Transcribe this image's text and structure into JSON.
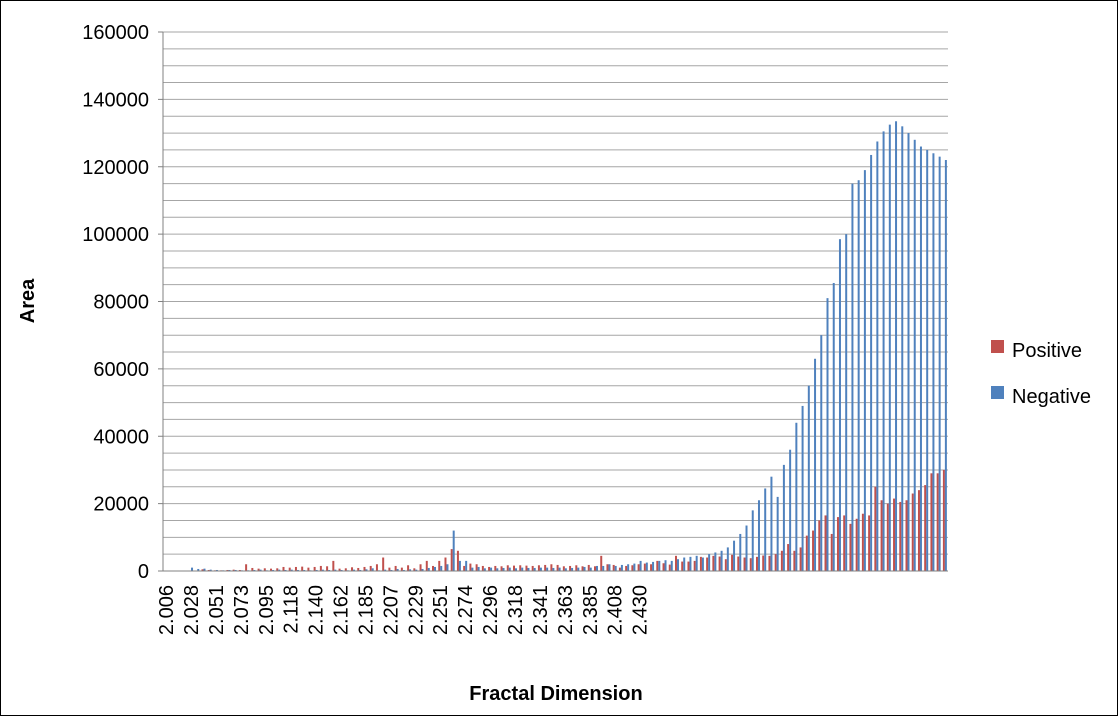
{
  "chart_data": {
    "type": "bar",
    "title": "",
    "xlabel": "Fractal Dimension",
    "ylabel": "Area",
    "ylim": [
      0,
      160000
    ],
    "ytick_step": 20000,
    "yticks": [
      "0",
      "20000",
      "40000",
      "60000",
      "80000",
      "100000",
      "120000",
      "140000",
      "160000"
    ],
    "grid": true,
    "legend_position": "right",
    "x_start": 2.006,
    "x_step": 0.0056,
    "tick_labels": [
      "2.006",
      "2.028",
      "2.051",
      "2.073",
      "2.095",
      "2.118",
      "2.140",
      "2.162",
      "2.185",
      "2.207",
      "2.229",
      "2.251",
      "2.274",
      "2.296",
      "2.318",
      "2.341",
      "2.363",
      "2.385",
      "2.408",
      "2.430"
    ],
    "tick_every": 4,
    "series": [
      {
        "name": "Positive",
        "color": "#C0504D",
        "values": [
          0,
          0,
          0,
          0,
          0,
          0,
          500,
          300,
          200,
          200,
          300,
          400,
          300,
          2000,
          900,
          700,
          800,
          700,
          800,
          1200,
          1000,
          1200,
          1300,
          1000,
          1200,
          1500,
          1400,
          3000,
          700,
          800,
          1100,
          900,
          1200,
          1500,
          2000,
          4000,
          1000,
          1500,
          1000,
          1700,
          800,
          2000,
          3000,
          1500,
          3000,
          4000,
          6500,
          6000,
          1500,
          2200,
          2000,
          1500,
          1200,
          1500,
          1400,
          1700,
          1600,
          1700,
          1600,
          1500,
          1700,
          1800,
          2000,
          1800,
          1400,
          1500,
          1700,
          1400,
          1800,
          1400,
          4500,
          2000,
          1800,
          1000,
          1500,
          1700,
          2000,
          2200,
          2000,
          3000,
          2300,
          1900,
          4500,
          2800,
          2800,
          3000,
          4200,
          4000,
          4500,
          4300,
          3500,
          4800,
          4300,
          4000,
          3800,
          4200,
          4600,
          4500,
          5000,
          6000,
          8000,
          6000,
          7000,
          10500,
          12000,
          15000,
          16500,
          11000,
          16000,
          16500,
          14000,
          15500,
          17000,
          16500,
          25000,
          21000,
          20000,
          21500,
          20500,
          21000,
          23000,
          24000,
          25500,
          29000,
          29000,
          30000
        ]
      },
      {
        "name": "Negative",
        "color": "#4F81BD",
        "values": [
          0,
          0,
          0,
          0,
          1000,
          600,
          700,
          400,
          300,
          200,
          300,
          300,
          200,
          200,
          300,
          400,
          200,
          300,
          400,
          300,
          400,
          300,
          300,
          200,
          300,
          400,
          300,
          400,
          300,
          200,
          400,
          300,
          500,
          800,
          200,
          400,
          300,
          600,
          300,
          500,
          400,
          600,
          900,
          1200,
          1500,
          2000,
          12000,
          3000,
          3000,
          1000,
          1200,
          800,
          1000,
          800,
          900,
          1000,
          800,
          1000,
          900,
          900,
          1000,
          1000,
          900,
          1000,
          800,
          900,
          1000,
          1200,
          1000,
          1500,
          1500,
          2000,
          1500,
          1800,
          2000,
          2200,
          3000,
          2500,
          2700,
          3000,
          3200,
          3000,
          3500,
          4000,
          4200,
          4500,
          4000,
          5000,
          5500,
          6000,
          7000,
          9000,
          11000,
          13500,
          18000,
          21000,
          24500,
          28000,
          22000,
          31500,
          36000,
          44000,
          49000,
          55000,
          63000,
          70000,
          81000,
          85500,
          98500,
          100000,
          115000,
          116000,
          119000,
          123500,
          127500,
          130500,
          132500,
          133500,
          132000,
          130000,
          128000,
          126000,
          125000,
          124000,
          123000,
          122000,
          121000
        ]
      }
    ]
  }
}
